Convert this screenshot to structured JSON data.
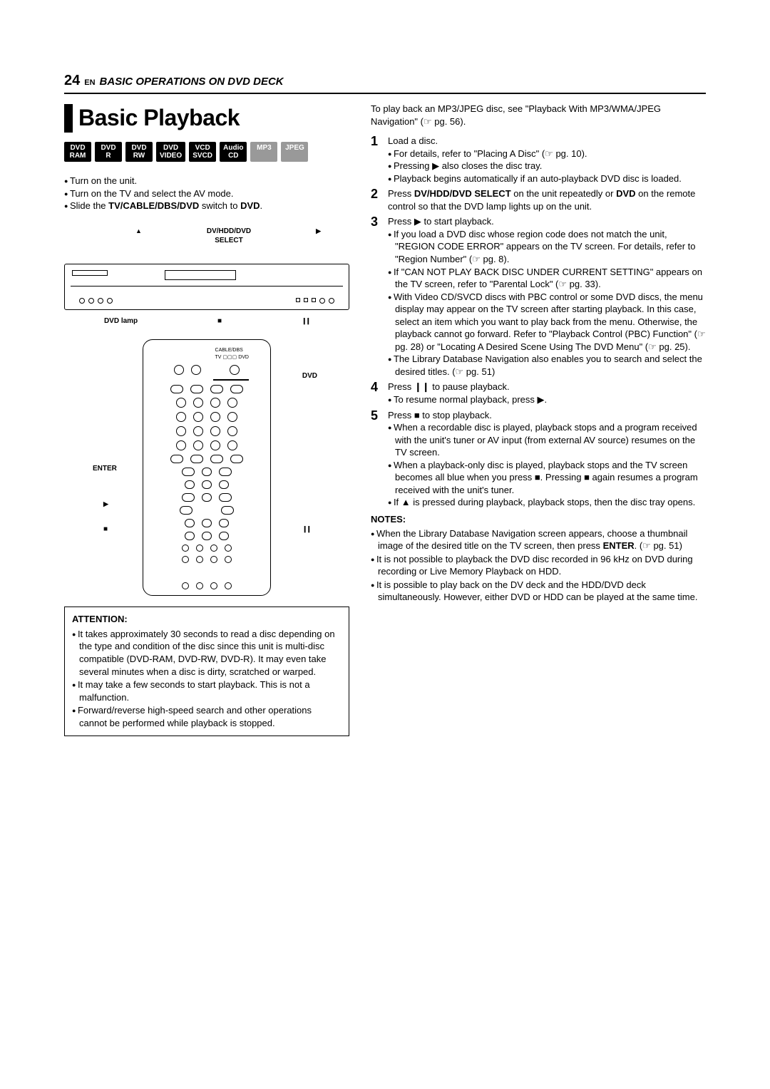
{
  "header": {
    "page_number": "24",
    "lang": "EN",
    "section": "BASIC OPERATIONS ON DVD DECK"
  },
  "title": "Basic Playback",
  "badges": [
    {
      "label": "DVD\nRAM",
      "style": "black"
    },
    {
      "label": "DVD\nR",
      "style": "black"
    },
    {
      "label": "DVD\nRW",
      "style": "black"
    },
    {
      "label": "DVD\nVIDEO",
      "style": "black"
    },
    {
      "label": "VCD\nSVCD",
      "style": "black"
    },
    {
      "label": "Audio\nCD",
      "style": "black"
    },
    {
      "label": "MP3",
      "style": "gray"
    },
    {
      "label": "JPEG",
      "style": "gray"
    }
  ],
  "prep": [
    "Turn on the unit.",
    "Turn on the TV and select the AV mode.",
    "Slide the TV/CABLE/DBS/DVD switch to DVD."
  ],
  "prep_bold_segment": "TV/CABLE/DBS/DVD",
  "prep_bold_segment2": "DVD",
  "diagram_top": {
    "left_label": "DV/HDD/DVD\nSELECT"
  },
  "diagram_bottom": {
    "left": "DVD lamp"
  },
  "remote_annotations": {
    "dvd": "DVD",
    "enter": "ENTER"
  },
  "attention": {
    "heading": "ATTENTION:",
    "items": [
      "It takes approximately 30 seconds to read a disc depending on the type and condition of the disc since this unit is multi-disc compatible (DVD-RAM, DVD-RW, DVD-R). It may even take several minutes when a disc is dirty, scratched or warped.",
      "It may take a few seconds to start playback. This is not a malfunction.",
      "Forward/reverse high-speed search and other operations cannot be performed while playback is stopped."
    ]
  },
  "intro": "To play back an MP3/JPEG disc, see \"Playback With MP3/WMA/JPEG Navigation\" (☞ pg. 56).",
  "steps": [
    {
      "num": "1",
      "text": "Load a disc.",
      "sub": [
        "For details, refer to \"Placing A Disc\" (☞ pg. 10).",
        "Pressing ▶ also closes the disc tray.",
        "Playback begins automatically if an auto-playback DVD disc is loaded."
      ]
    },
    {
      "num": "2",
      "text_html": "Press <b>DV/HDD/DVD SELECT</b> on the unit repeatedly or <b>DVD</b> on the remote control so that the DVD lamp lights up on the unit.",
      "sub": []
    },
    {
      "num": "3",
      "text": "Press ▶ to start playback.",
      "sub": [
        "If you load a DVD disc whose region code does not match the unit, \"REGION CODE ERROR\" appears on the TV screen. For details, refer to \"Region Number\" (☞ pg. 8).",
        "If \"CAN NOT PLAY BACK DISC UNDER CURRENT SETTING\" appears on the TV screen, refer to \"Parental Lock\" (☞ pg. 33).",
        "With Video CD/SVCD discs with PBC control or some DVD discs, the menu display may appear on the TV screen after starting playback. In this case, select an item which you want to play back from the menu. Otherwise, the playback cannot go forward. Refer to \"Playback Control (PBC) Function\" (☞ pg. 28) or \"Locating A Desired Scene Using The DVD Menu\" (☞ pg. 25).",
        "The Library Database Navigation also enables you to search and select the desired titles. (☞ pg. 51)"
      ]
    },
    {
      "num": "4",
      "text": "Press ❙❙ to pause playback.",
      "sub": [
        "To resume normal playback, press ▶."
      ]
    },
    {
      "num": "5",
      "text": "Press ■ to stop playback.",
      "sub": [
        "When a recordable disc is played, playback stops and a program received with the unit's tuner or AV input (from external AV source) resumes on the TV screen.",
        "When a playback-only disc is played, playback stops and the TV screen becomes all blue when you press ■. Pressing ■ again resumes a program received with the unit's tuner.",
        "If ▲ is pressed during playback, playback stops, then the disc tray opens."
      ]
    }
  ],
  "notes": {
    "heading": "NOTES:",
    "items": [
      "When the Library Database Navigation screen appears, choose a thumbnail image of the desired title on the TV screen, then press ENTER. (☞ pg. 51)",
      "It is not possible to playback the DVD disc recorded in 96 kHz on DVD during recording or Live Memory Playback on HDD.",
      "It is possible to play back on the DV deck and the HDD/DVD deck simultaneously. However, either DVD or HDD can be played at the same time."
    ],
    "bold_word": "ENTER"
  }
}
